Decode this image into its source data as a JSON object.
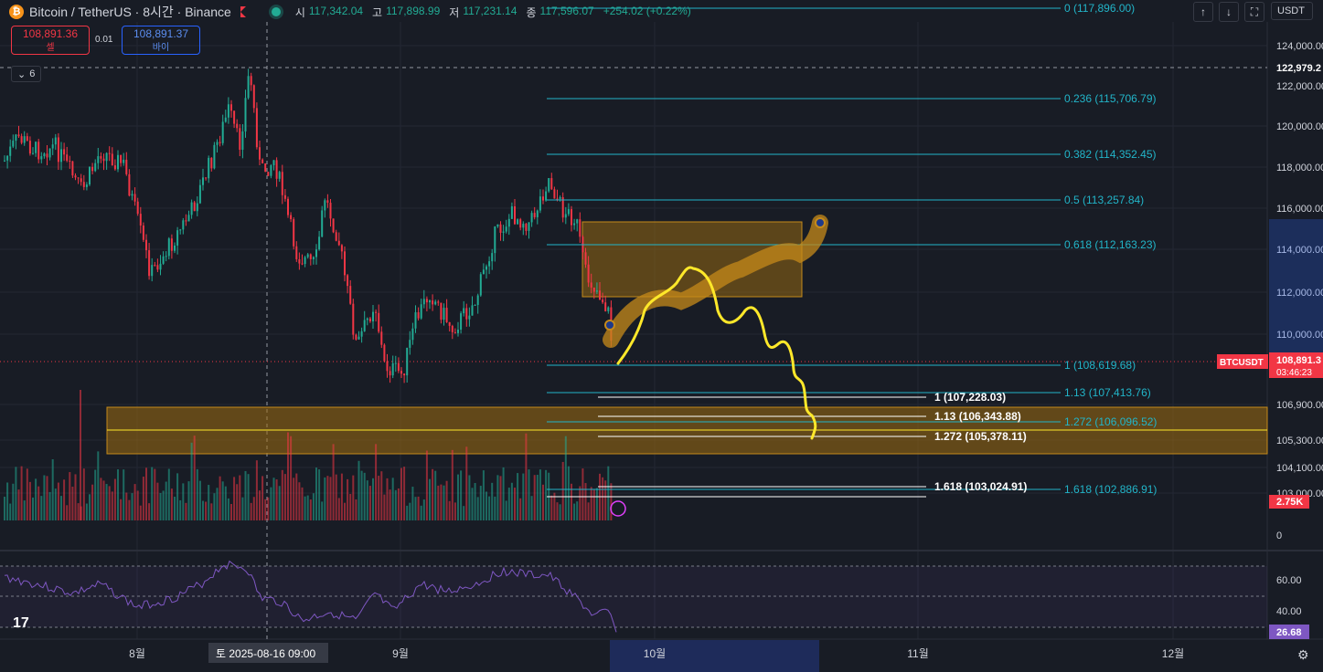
{
  "header": {
    "symbol": "Bitcoin / TetherUS · 8시간 · Binance",
    "open_label": "시",
    "open": "117,342.04",
    "high_label": "고",
    "high": "117,898.99",
    "low_label": "저",
    "low": "117,231.14",
    "close_label": "종",
    "close": "117,596.07",
    "change": "+254.02 (+0.22%)"
  },
  "trade": {
    "sell_price": "108,891.36",
    "sell_label": "셀",
    "spread": "0.01",
    "buy_price": "108,891.37",
    "buy_label": "바이"
  },
  "indicators_count": "6",
  "toolbar": {
    "currency": "USDT"
  },
  "colors": {
    "up": "#22ab94",
    "down": "#f23645",
    "fib": "#22b5c9",
    "zone": "#a06e10",
    "draw": "#ffe82a",
    "rsi": "#7e57c2"
  },
  "price_axis": {
    "ticks": [
      "124,000.00",
      "122,000.00",
      "120,000.00",
      "118,000.00",
      "116,000.00",
      "114,000.00",
      "112,000.00",
      "110,000.00",
      "106,900.00",
      "105,300.00",
      "104,100.00",
      "103,000.00",
      "0"
    ],
    "high_marker": "122,979.2",
    "current_symbol": "BTCUSDT",
    "current_price": "108,891.3",
    "countdown": "03:46:23",
    "volume_value": "2.75K"
  },
  "fib_right": [
    {
      "label": "0 (117,896.00)",
      "price": 117896.0
    },
    {
      "label": "0.236 (115,706.79)",
      "price": 115706.79
    },
    {
      "label": "0.382 (114,352.45)",
      "price": 114352.45
    },
    {
      "label": "0.5 (113,257.84)",
      "price": 113257.84
    },
    {
      "label": "0.618 (112,163.23)",
      "price": 112163.23
    },
    {
      "label": "1 (108,619.68)",
      "price": 108619.68
    },
    {
      "label": "1.13 (107,413.76)",
      "price": 107413.76
    },
    {
      "label": "1.272 (106,096.52)",
      "price": 106096.52
    },
    {
      "label": "1.618 (102,886.91)",
      "price": 102886.91
    }
  ],
  "fib_white": [
    {
      "label": "1 (107,228.03)",
      "price": 107228.03
    },
    {
      "label": "1.13 (106,343.88)",
      "price": 106343.88
    },
    {
      "label": "1.272 (105,378.11)",
      "price": 105378.11
    },
    {
      "label": "1.618 (103,024.91)",
      "price": 103024.91
    }
  ],
  "rsi": {
    "ticks": [
      "60.00",
      "40.00"
    ],
    "value": "26.68"
  },
  "time_axis": {
    "labels": [
      "8월",
      "9월",
      "10월",
      "11월",
      "12월"
    ],
    "crosshair": "토  2025-08-16   09:00"
  }
}
